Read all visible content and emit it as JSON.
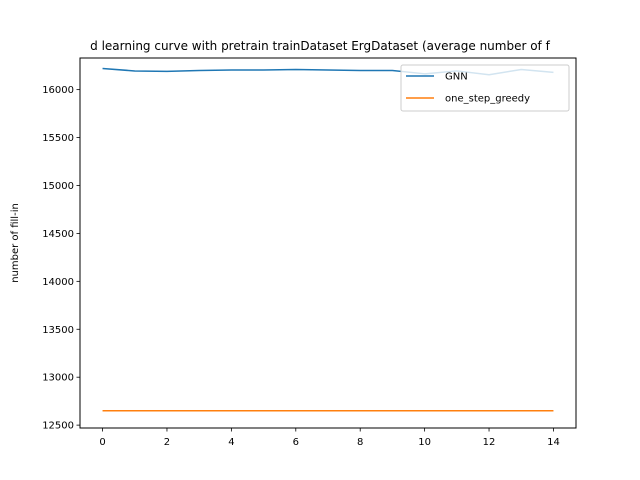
{
  "chart_data": {
    "type": "line",
    "title": "d learning curve with pretrain trainDataset ErgDataset (average number of f",
    "xlabel": "",
    "ylabel": "number of fill-in",
    "xlim": [
      -0.7,
      14.7
    ],
    "ylim": [
      12470,
      16330
    ],
    "xticks": [
      0,
      2,
      4,
      6,
      8,
      10,
      12,
      14
    ],
    "yticks": [
      12500,
      13000,
      13500,
      14000,
      14500,
      15000,
      15500,
      16000
    ],
    "grid": false,
    "legend_position": "top-right",
    "x": [
      0,
      1,
      2,
      3,
      4,
      5,
      6,
      7,
      8,
      9,
      10,
      11,
      12,
      13,
      14
    ],
    "series": [
      {
        "name": "GNN",
        "color": "#1f77b4",
        "values": [
          16220,
          16195,
          16190,
          16200,
          16205,
          16205,
          16210,
          16205,
          16200,
          16200,
          16165,
          16195,
          16155,
          16210,
          16180
        ]
      },
      {
        "name": "one_step_greedy",
        "color": "#ff7f0e",
        "values": [
          12650,
          12650,
          12650,
          12650,
          12650,
          12650,
          12650,
          12650,
          12650,
          12650,
          12650,
          12650,
          12650,
          12650,
          12650
        ]
      }
    ]
  }
}
